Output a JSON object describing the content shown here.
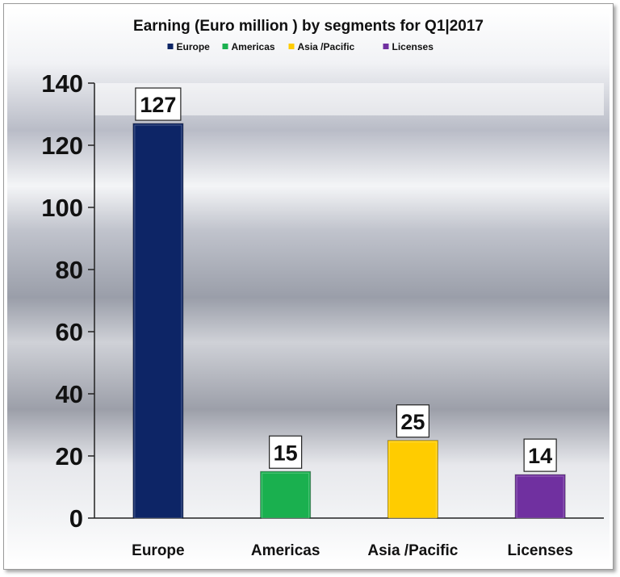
{
  "chart_data": {
    "type": "bar",
    "title": "Earning (Euro million ) by segments for Q1|2017",
    "categories": [
      "Europe",
      "Americas",
      "Asia /Pacific",
      "Licenses"
    ],
    "values": [
      127,
      15,
      25,
      14
    ],
    "colors": [
      "#0d2566",
      "#1ab04f",
      "#ffcc00",
      "#7030a0"
    ],
    "legend": {
      "position": "top",
      "entries": [
        "Europe",
        "Americas",
        "Asia /Pacific",
        "Licenses"
      ]
    },
    "ylim": [
      0,
      140
    ],
    "yticks": [
      0,
      20,
      40,
      60,
      80,
      100,
      120,
      140
    ],
    "xlabel": "",
    "ylabel": "",
    "grid": false,
    "data_labels": true
  }
}
